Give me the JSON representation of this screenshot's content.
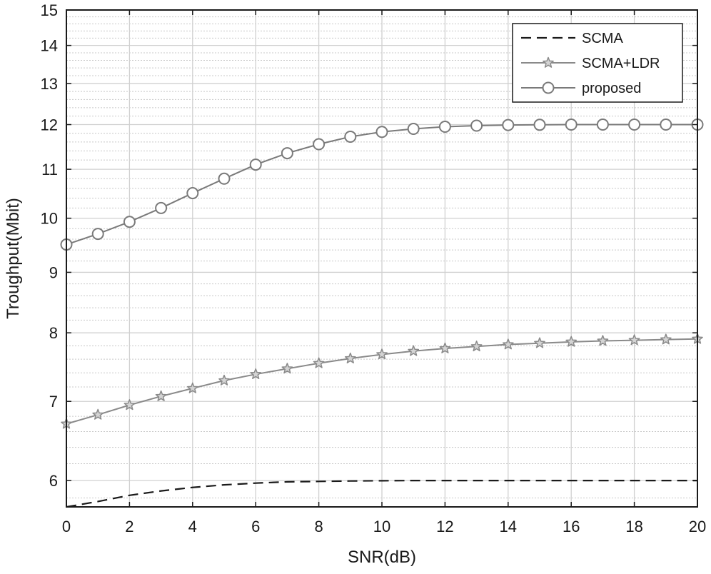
{
  "chart_data": {
    "type": "line",
    "title": "",
    "xlabel": "SNR(dB)",
    "ylabel": "Troughput(Mbit)",
    "yscale": "log",
    "xlim": [
      0,
      20
    ],
    "ylim": [
      5.7,
      15
    ],
    "grid": true,
    "minor_grid": true,
    "legend_position": "top-right",
    "x": [
      0,
      1,
      2,
      3,
      4,
      5,
      6,
      7,
      8,
      9,
      10,
      11,
      12,
      13,
      14,
      15,
      16,
      17,
      18,
      19,
      20
    ],
    "x_ticks": [
      0,
      2,
      4,
      6,
      8,
      10,
      12,
      14,
      16,
      18,
      20
    ],
    "x_tick_labels": [
      "0",
      "2",
      "4",
      "6",
      "8",
      "10",
      "12",
      "14",
      "16",
      "18",
      "20"
    ],
    "y_ticks": [
      6,
      7,
      8,
      9,
      10,
      11,
      12,
      13,
      14,
      15
    ],
    "y_tick_labels": [
      "6",
      "7",
      "8",
      "9",
      "10",
      "11",
      "12",
      "13",
      "14",
      "15"
    ],
    "series": [
      {
        "name": "SCMA",
        "style": "dashed",
        "marker": "none",
        "color": "#1a1a1a",
        "values": [
          5.7,
          5.76,
          5.83,
          5.88,
          5.92,
          5.95,
          5.97,
          5.985,
          5.99,
          5.995,
          5.998,
          6.0,
          6.0,
          6.0,
          6.0,
          6.0,
          6.0,
          6.0,
          6.0,
          6.0,
          6.0
        ]
      },
      {
        "name": "SCMA+LDR",
        "style": "solid",
        "marker": "star",
        "color": "#8a8a8a",
        "values": [
          6.7,
          6.82,
          6.95,
          7.07,
          7.18,
          7.29,
          7.38,
          7.46,
          7.54,
          7.61,
          7.67,
          7.72,
          7.76,
          7.79,
          7.82,
          7.84,
          7.86,
          7.875,
          7.885,
          7.895,
          7.905
        ]
      },
      {
        "name": "proposed",
        "style": "solid",
        "marker": "circle",
        "color": "#7a7a7a",
        "values": [
          9.5,
          9.7,
          9.93,
          10.2,
          10.5,
          10.8,
          11.1,
          11.35,
          11.55,
          11.72,
          11.83,
          11.9,
          11.95,
          11.975,
          11.99,
          11.995,
          12.0,
          12.0,
          12.0,
          12.0,
          12.0
        ]
      }
    ]
  }
}
